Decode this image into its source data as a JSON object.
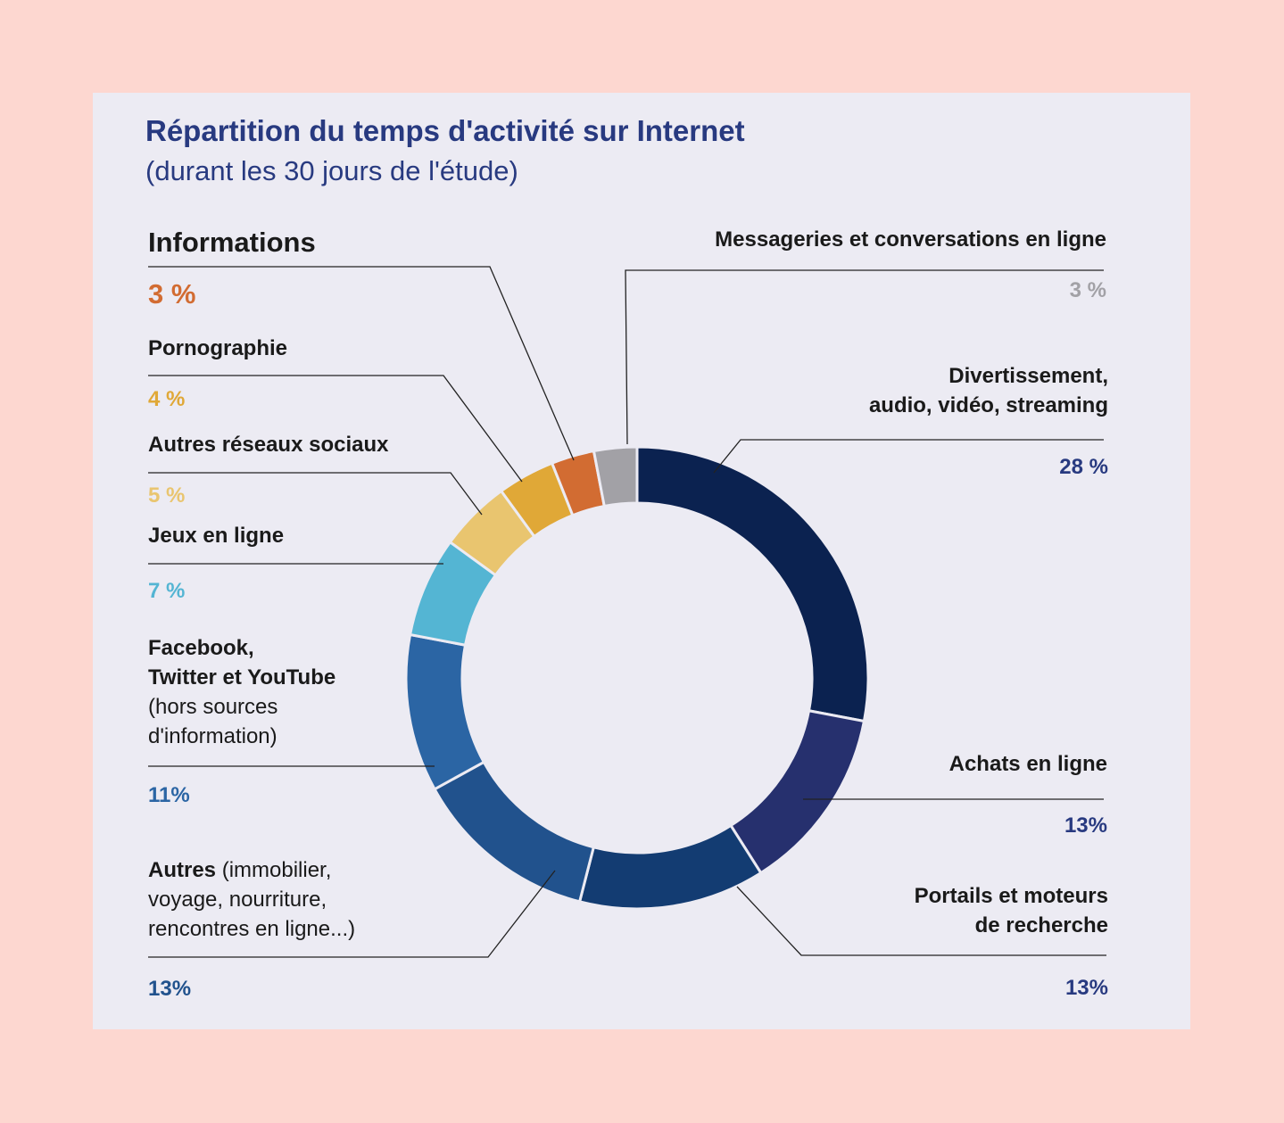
{
  "title": "Répartition du temps d'activité sur Internet",
  "subtitle": "(durant les 30 jours de l'étude)",
  "chart_data": {
    "type": "pie",
    "title": "Répartition du temps d'activité sur Internet",
    "subtitle": "(durant les 30 jours de l'étude)",
    "donut": true,
    "slices": [
      {
        "label": "Divertissement, audio, vidéo, streaming",
        "value": 28,
        "value_label": "28 %",
        "color": "#0b2250"
      },
      {
        "label": "Achats en ligne",
        "value": 13,
        "value_label": "13%",
        "color": "#26306e"
      },
      {
        "label": "Portails et moteurs de recherche",
        "value": 13,
        "value_label": "13%",
        "color": "#133c72"
      },
      {
        "label": "Autres (immobilier, voyage, nourriture, rencontres en ligne...)",
        "value": 13,
        "value_label": "13%",
        "color": "#21528d"
      },
      {
        "label": "Facebook, Twitter et YouTube (hors sources d'information)",
        "value": 11,
        "value_label": "11%",
        "color": "#2b65a4"
      },
      {
        "label": "Jeux en ligne",
        "value": 7,
        "value_label": "7 %",
        "color": "#54b5d3"
      },
      {
        "label": "Autres réseaux sociaux",
        "value": 5,
        "value_label": "5 %",
        "color": "#e9c56f"
      },
      {
        "label": "Pornographie",
        "value": 4,
        "value_label": "4 %",
        "color": "#e0a837"
      },
      {
        "label": "Informations",
        "value": 3,
        "value_label": "3 %",
        "color": "#d26c32"
      },
      {
        "label": "Messageries et conversations en ligne",
        "value": 3,
        "value_label": "3 %",
        "color": "#a2a1a6"
      }
    ]
  },
  "labels": {
    "divertissement": {
      "line1": "Divertissement,",
      "line2": "audio, vidéo, streaming",
      "pct": "28 %",
      "color": "#283a80"
    },
    "achats": {
      "line1": "Achats en ligne",
      "pct": "13%",
      "color": "#283a80"
    },
    "portails": {
      "line1": "Portails et moteurs",
      "line2": "de recherche",
      "pct": "13%",
      "color": "#283a80"
    },
    "autres": {
      "bold": "Autres",
      "rest1": " (immobilier,",
      "line2": "voyage, nourriture,",
      "line3": "rencontres en ligne...)",
      "pct": "13%",
      "color": "#21528d"
    },
    "facebook": {
      "line1": "Facebook,",
      "line2": "Twitter et YouTube",
      "line3": "(hors sources",
      "line4": "d'information)",
      "pct": "11%",
      "color": "#2b65a4"
    },
    "jeux": {
      "line1": "Jeux en ligne",
      "pct": "7 %",
      "color": "#54b5d3"
    },
    "reseaux": {
      "line1": "Autres réseaux sociaux",
      "pct": "5 %",
      "color": "#e9c56f"
    },
    "porno": {
      "line1": "Pornographie",
      "pct": "4 %",
      "color": "#e0a837"
    },
    "informations": {
      "line1": "Informations",
      "pct": "3 %",
      "color": "#d26c32"
    },
    "messageries": {
      "line1": "Messageries et conversations en ligne",
      "pct": "3 %",
      "color": "#a2a1a6"
    }
  }
}
